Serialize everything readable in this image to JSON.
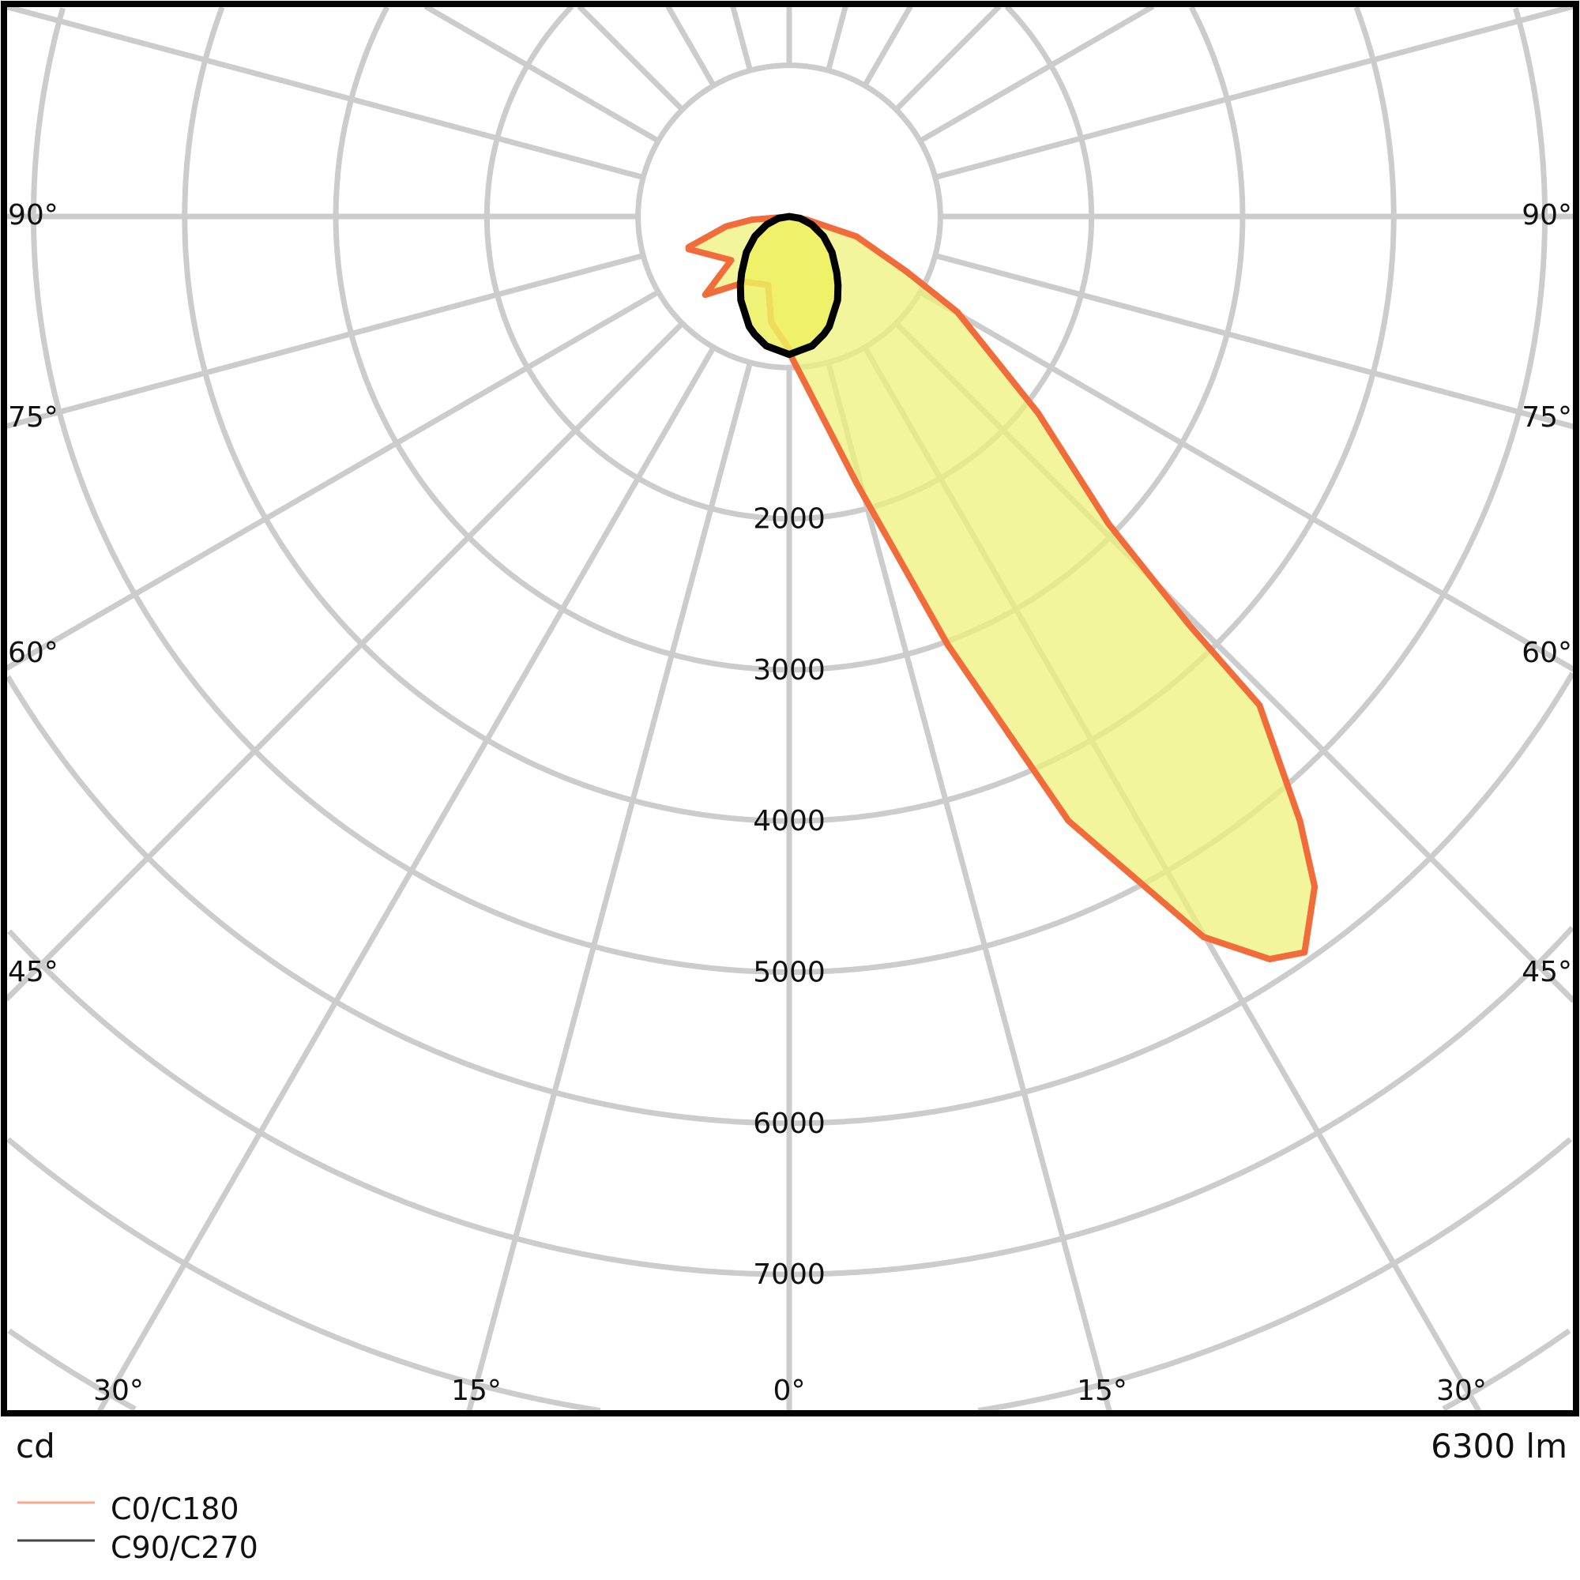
{
  "chart_data": {
    "type": "polar",
    "unit_label": "cd",
    "flux_label": "6300 lm",
    "radial_ticks": [
      2000,
      3000,
      4000,
      5000,
      6000,
      7000
    ],
    "radial_grid_step": 1000,
    "radial_grid_max": 10000,
    "angle_grid_step_deg": 15,
    "angle_labels": {
      "left": [
        "90°",
        "75°",
        "60°",
        "45°"
      ],
      "right": [
        "90°",
        "75°",
        "60°",
        "45°"
      ],
      "bottom": [
        "30°",
        "15°",
        "0°",
        "15°",
        "30°"
      ]
    },
    "grid": true,
    "legend_position": "bottom-left",
    "colors": {
      "grid": "#cccccc",
      "c0_stroke": "#f26b3a",
      "c0_fill": "#eef27a",
      "c90_stroke": "#000000",
      "c90_fill": "#eef060",
      "frame": "#000000"
    },
    "series": [
      {
        "name": "C0/C180",
        "angle_note": "negative = C180 side (left), positive = C0 side (right)",
        "points": [
          [
            0,
            900
          ],
          [
            14.2,
            1823
          ],
          [
            20.3,
            3020
          ],
          [
            24.8,
            4406
          ],
          [
            29.9,
            5500
          ],
          [
            32.9,
            5853
          ],
          [
            35,
            5945
          ],
          [
            38.1,
            5635
          ],
          [
            40.2,
            5236
          ],
          [
            43.9,
            4488
          ],
          [
            44.4,
            3781
          ],
          [
            46.1,
            2933
          ],
          [
            51.7,
            2098
          ],
          [
            60.4,
            1280
          ],
          [
            64.8,
            862
          ],
          [
            73.4,
            466
          ],
          [
            79.9,
            115
          ],
          [
            90,
            10
          ],
          [
            -85,
            250
          ],
          [
            -81,
            425
          ],
          [
            -73,
            696
          ],
          [
            -72,
            700
          ],
          [
            -53,
            481
          ],
          [
            -47,
            760
          ],
          [
            -33.5,
            520
          ],
          [
            -17,
            475
          ],
          [
            -9.7,
            710
          ],
          [
            0,
            880
          ]
        ]
      },
      {
        "name": "C90/C270",
        "points": [
          [
            0,
            913
          ],
          [
            10,
            870
          ],
          [
            16.4,
            812
          ],
          [
            20,
            775
          ],
          [
            30,
            640
          ],
          [
            35.3,
            559
          ],
          [
            40,
            490
          ],
          [
            50,
            370
          ],
          [
            60,
            262
          ],
          [
            70,
            160
          ],
          [
            80,
            75
          ],
          [
            90,
            0
          ],
          [
            -80,
            75
          ],
          [
            -70,
            160
          ],
          [
            -60,
            262
          ],
          [
            -50,
            370
          ],
          [
            -40,
            490
          ],
          [
            -35.3,
            559
          ],
          [
            -30,
            640
          ],
          [
            -20,
            775
          ],
          [
            -16.4,
            812
          ],
          [
            -10,
            870
          ],
          [
            0,
            913
          ]
        ]
      }
    ]
  }
}
